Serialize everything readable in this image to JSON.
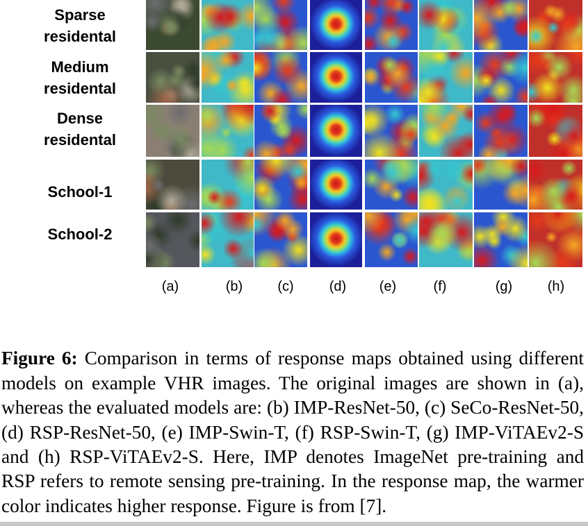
{
  "figure": {
    "rows": [
      {
        "label_line1": "Sparse",
        "label_line2": "residental"
      },
      {
        "label_line1": "Medium",
        "label_line2": "residental"
      },
      {
        "label_line1": "Dense",
        "label_line2": "residental"
      },
      {
        "label_line1": "School-1",
        "label_line2": ""
      },
      {
        "label_line1": "School-2",
        "label_line2": ""
      }
    ],
    "columns": [
      "(a)",
      "(b)",
      "(c)",
      "(d)",
      "(e)",
      "(f)",
      "(g)",
      "(h)"
    ]
  },
  "caption": {
    "label": "Figure 6:",
    "text": " Comparison in terms of response maps obtained using different models on example VHR images. The original images are shown in (a), whereas the evaluated models are: (b) IMP-ResNet-50, (c) SeCo-ResNet-50, (d) RSP-ResNet-50, (e) IMP-Swin-T, (f) RSP-Swin-T, (g) IMP-ViTAEv2-S and (h) RSP-ViTAEv2-S. Here, IMP denotes ImageNet pre-training and RSP refers to remote sensing pre-training. In the response map, the warmer color indicates higher response. Figure is from [7]."
  }
}
